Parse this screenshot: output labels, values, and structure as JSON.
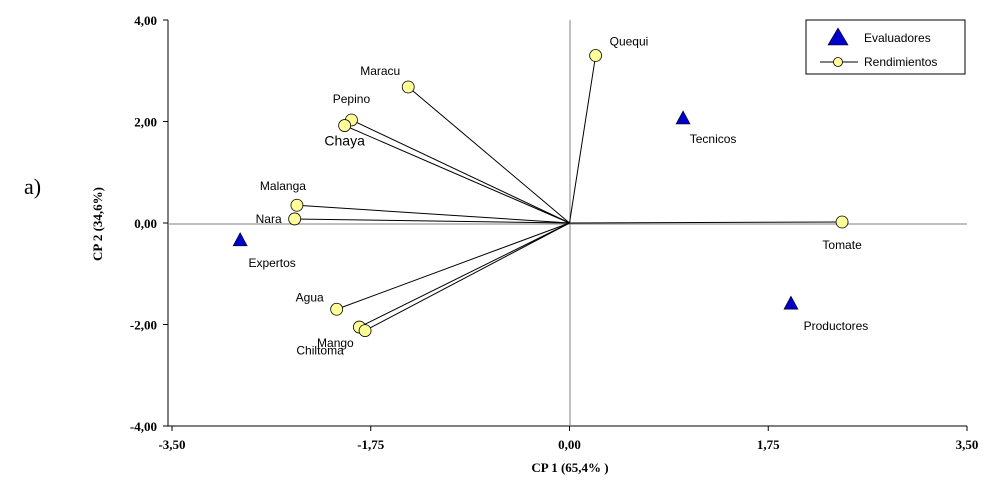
{
  "panel_label": "a)",
  "chart_data": {
    "type": "scatter",
    "xlabel": "CP 1 (65,4% )",
    "ylabel": "CP 2 (34,6%)",
    "xlim": [
      -3.5,
      3.5
    ],
    "ylim": [
      -4.0,
      4.0
    ],
    "x_ticks": [
      "-3,50",
      "-1,75",
      "0,00",
      "1,75",
      "3,50"
    ],
    "y_ticks": [
      "4,00",
      "2,00",
      "0,00",
      "-2,00",
      "-4,00"
    ],
    "grid": false,
    "reference_lines": "x=0 and y=0",
    "legend": {
      "position": "top-right",
      "entries": [
        "Evaluadores",
        "Rendimientos"
      ]
    },
    "series": [
      {
        "name": "Evaluadores",
        "marker": "triangle",
        "color": "#0000cc",
        "points": [
          {
            "label": "Tecnicos",
            "x": 1.0,
            "y": 2.05
          },
          {
            "label": "Expertos",
            "x": -2.9,
            "y": -0.35
          },
          {
            "label": "Productores",
            "x": 1.95,
            "y": -1.6
          }
        ]
      },
      {
        "name": "Rendimientos",
        "marker": "circle",
        "color": "#ffff99",
        "vectors_from_origin": true,
        "points": [
          {
            "label": "Quequi",
            "x": 0.23,
            "y": 3.3
          },
          {
            "label": "Maracu",
            "x": -1.42,
            "y": 2.68
          },
          {
            "label": "Pepino",
            "x": -1.92,
            "y": 2.03
          },
          {
            "label": "Chaya",
            "x": -1.98,
            "y": 1.92
          },
          {
            "label": "Malanga",
            "x": -2.4,
            "y": 0.35
          },
          {
            "label": "Nara",
            "x": -2.42,
            "y": 0.08
          },
          {
            "label": "Tomate",
            "x": 2.4,
            "y": 0.02
          },
          {
            "label": "Agua",
            "x": -2.05,
            "y": -1.7
          },
          {
            "label": "Mango",
            "x": -1.85,
            "y": -2.05
          },
          {
            "label": "Chiltoma",
            "x": -1.8,
            "y": -2.12
          }
        ]
      }
    ]
  }
}
